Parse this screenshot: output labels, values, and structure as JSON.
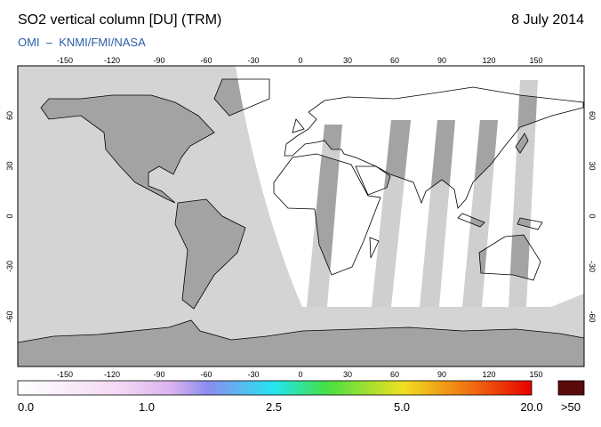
{
  "header": {
    "title": "SO2 vertical column [DU] (TRM)",
    "date": "8 July 2014",
    "source": "OMI  –  KNMI/FMI/NASA"
  },
  "map": {
    "lon_ticks": [
      -150,
      -120,
      -90,
      -60,
      -30,
      0,
      30,
      60,
      90,
      120,
      150
    ],
    "lat_ticks": [
      60,
      30,
      0,
      -30,
      -60
    ]
  },
  "colorbar": {
    "labels": [
      "0.0",
      "1.0",
      "2.5",
      "5.0",
      "20.0",
      ">50"
    ]
  }
}
